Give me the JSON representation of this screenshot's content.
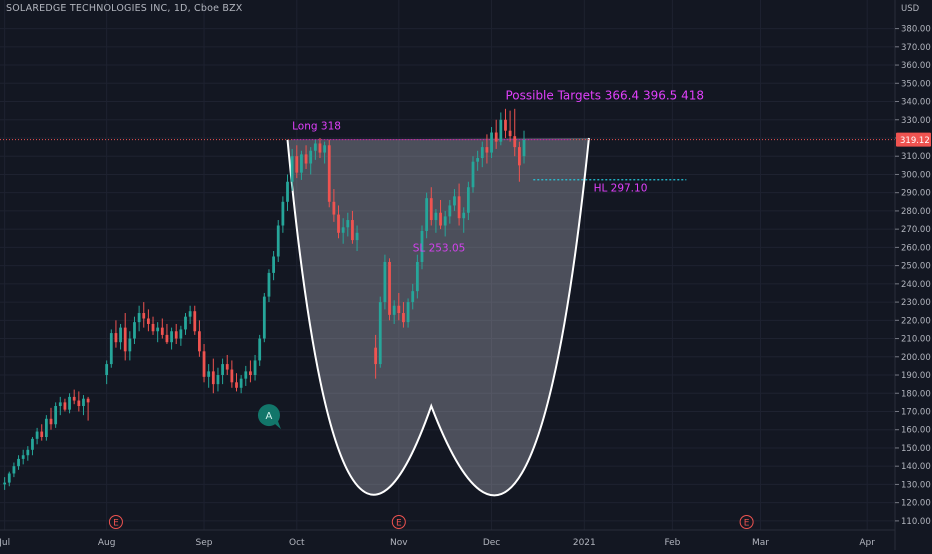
{
  "chart_data": {
    "type": "candlestick",
    "title": "SOLAREDGE TECHNOLOGIES INC, 1D, Cboe BZX",
    "currency": "USD",
    "last_price": "319.12",
    "ylim": [
      105,
      388
    ],
    "y_ticks": [
      110,
      120,
      130,
      140,
      150,
      160,
      170,
      180,
      190,
      200,
      210,
      220,
      230,
      240,
      250,
      260,
      270,
      280,
      290,
      300,
      310,
      320,
      330,
      340,
      350,
      360,
      370,
      380
    ],
    "x_ticks": [
      {
        "label": "Jul",
        "day": 0
      },
      {
        "label": "Aug",
        "day": 22
      },
      {
        "label": "Sep",
        "day": 43
      },
      {
        "label": "Oct",
        "day": 63
      },
      {
        "label": "Nov",
        "day": 85
      },
      {
        "label": "Dec",
        "day": 105
      },
      {
        "label": "2021",
        "day": 125
      },
      {
        "label": "Feb",
        "day": 144
      },
      {
        "label": "Mar",
        "day": 163
      },
      {
        "label": "Apr",
        "day": 186
      }
    ],
    "x_range_days": [
      -1,
      192
    ],
    "earnings_markers": [
      {
        "label": "E",
        "day": 24
      },
      {
        "label": "E",
        "day": 85
      },
      {
        "label": "E",
        "day": 160
      }
    ],
    "alert_marker": {
      "label": "A",
      "day": 57,
      "price": 168
    },
    "annotations": {
      "long": "Long  318",
      "targets": "Possible Targets  366.4   396.5   418",
      "hl": "HL 297.10",
      "sl": "SL  253.05"
    },
    "levels": {
      "long": 319.12,
      "hl": 297.1
    },
    "cup_pattern": {
      "left_day": 61,
      "left_price": 319,
      "bottom_day": 92,
      "bottom_price": 173,
      "right_day": 126,
      "right_price": 320
    },
    "candles": [
      [
        0,
        130,
        134,
        127,
        131
      ],
      [
        1,
        131,
        137,
        129,
        136
      ],
      [
        2,
        136,
        142,
        134,
        140
      ],
      [
        3,
        140,
        146,
        138,
        144
      ],
      [
        4,
        144,
        149,
        141,
        146
      ],
      [
        5,
        146,
        151,
        143,
        149
      ],
      [
        6,
        149,
        156,
        146,
        155
      ],
      [
        7,
        155,
        161,
        152,
        159
      ],
      [
        8,
        159,
        163,
        154,
        156
      ],
      [
        9,
        156,
        168,
        154,
        166
      ],
      [
        10,
        166,
        172,
        160,
        163
      ],
      [
        11,
        163,
        175,
        161,
        173
      ],
      [
        12,
        173,
        178,
        168,
        175
      ],
      [
        13,
        175,
        177,
        170,
        171
      ],
      [
        14,
        171,
        180,
        169,
        178
      ],
      [
        15,
        178,
        182,
        174,
        176
      ],
      [
        16,
        176,
        181,
        170,
        173
      ],
      [
        17,
        173,
        179,
        168,
        177
      ],
      [
        18,
        177,
        178,
        165,
        175
      ],
      [
        22,
        190,
        198,
        185,
        196
      ],
      [
        23,
        196,
        215,
        194,
        213
      ],
      [
        24,
        213,
        220,
        205,
        208
      ],
      [
        25,
        208,
        218,
        204,
        216
      ],
      [
        26,
        216,
        224,
        198,
        203
      ],
      [
        27,
        203,
        214,
        198,
        210
      ],
      [
        28,
        210,
        222,
        207,
        219
      ],
      [
        29,
        219,
        228,
        214,
        224
      ],
      [
        30,
        224,
        230,
        216,
        221
      ],
      [
        31,
        221,
        226,
        214,
        218
      ],
      [
        32,
        218,
        222,
        212,
        214
      ],
      [
        33,
        214,
        219,
        208,
        216
      ],
      [
        34,
        216,
        221,
        210,
        212
      ],
      [
        35,
        212,
        218,
        207,
        208
      ],
      [
        36,
        208,
        216,
        204,
        214
      ],
      [
        37,
        214,
        218,
        207,
        210
      ],
      [
        38,
        210,
        217,
        206,
        215
      ],
      [
        39,
        215,
        224,
        212,
        222
      ],
      [
        40,
        222,
        228,
        218,
        225
      ],
      [
        41,
        225,
        228,
        212,
        214
      ],
      [
        42,
        214,
        220,
        200,
        203
      ],
      [
        43,
        203,
        207,
        186,
        189
      ],
      [
        44,
        189,
        196,
        183,
        192
      ],
      [
        45,
        192,
        199,
        180,
        185
      ],
      [
        46,
        185,
        194,
        181,
        190
      ],
      [
        47,
        190,
        199,
        185,
        196
      ],
      [
        48,
        196,
        201,
        190,
        193
      ],
      [
        49,
        193,
        198,
        183,
        186
      ],
      [
        50,
        186,
        191,
        181,
        183
      ],
      [
        51,
        183,
        190,
        180,
        188
      ],
      [
        52,
        188,
        195,
        184,
        192
      ],
      [
        53,
        192,
        198,
        186,
        190
      ],
      [
        54,
        190,
        201,
        187,
        198
      ],
      [
        55,
        198,
        212,
        195,
        210
      ],
      [
        56,
        210,
        235,
        208,
        233
      ],
      [
        57,
        233,
        248,
        230,
        246
      ],
      [
        58,
        246,
        258,
        242,
        255
      ],
      [
        59,
        255,
        275,
        252,
        272
      ],
      [
        60,
        272,
        288,
        268,
        285
      ],
      [
        61,
        285,
        300,
        280,
        296
      ],
      [
        62,
        296,
        314,
        291,
        310
      ],
      [
        63,
        310,
        316,
        298,
        301
      ],
      [
        64,
        301,
        313,
        297,
        311
      ],
      [
        65,
        311,
        316,
        303,
        306
      ],
      [
        66,
        306,
        315,
        300,
        313
      ],
      [
        67,
        313,
        319,
        308,
        317
      ],
      [
        68,
        317,
        320,
        309,
        312
      ],
      [
        69,
        312,
        318,
        306,
        316
      ],
      [
        70,
        316,
        319,
        282,
        285
      ],
      [
        71,
        285,
        292,
        274,
        278
      ],
      [
        72,
        278,
        283,
        265,
        268
      ],
      [
        73,
        268,
        276,
        262,
        271
      ],
      [
        74,
        271,
        279,
        266,
        275
      ],
      [
        75,
        275,
        280,
        262,
        264
      ],
      [
        76,
        264,
        272,
        258,
        268
      ],
      [
        80,
        205,
        212,
        188,
        196
      ],
      [
        81,
        196,
        233,
        194,
        230
      ],
      [
        82,
        230,
        256,
        226,
        252
      ],
      [
        83,
        252,
        254,
        220,
        223
      ],
      [
        84,
        223,
        231,
        218,
        228
      ],
      [
        85,
        228,
        235,
        220,
        224
      ],
      [
        86,
        224,
        230,
        216,
        219
      ],
      [
        87,
        219,
        232,
        216,
        230
      ],
      [
        88,
        230,
        240,
        226,
        236
      ],
      [
        89,
        236,
        256,
        232,
        252
      ],
      [
        90,
        252,
        272,
        248,
        269
      ],
      [
        91,
        269,
        290,
        265,
        287
      ],
      [
        92,
        287,
        293,
        272,
        275
      ],
      [
        93,
        275,
        281,
        268,
        279
      ],
      [
        94,
        279,
        286,
        270,
        272
      ],
      [
        95,
        272,
        280,
        266,
        277
      ],
      [
        96,
        277,
        286,
        273,
        283
      ],
      [
        97,
        283,
        292,
        280,
        288
      ],
      [
        98,
        288,
        295,
        272,
        276
      ],
      [
        99,
        276,
        282,
        268,
        279
      ],
      [
        100,
        279,
        296,
        275,
        293
      ],
      [
        101,
        293,
        310,
        290,
        307
      ],
      [
        102,
        307,
        313,
        302,
        309
      ],
      [
        103,
        309,
        318,
        304,
        315
      ],
      [
        104,
        315,
        322,
        306,
        312
      ],
      [
        105,
        312,
        326,
        309,
        323
      ],
      [
        106,
        323,
        330,
        314,
        318
      ],
      [
        107,
        318,
        334,
        316,
        330
      ],
      [
        108,
        330,
        336,
        320,
        324
      ],
      [
        109,
        324,
        335,
        318,
        321
      ],
      [
        110,
        321,
        336,
        310,
        315
      ],
      [
        111,
        315,
        318,
        296,
        305
      ],
      [
        112,
        310,
        324,
        306,
        319
      ]
    ]
  }
}
